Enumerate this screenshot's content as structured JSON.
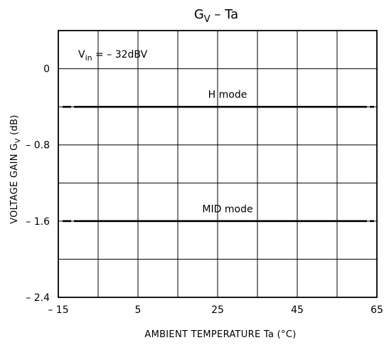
{
  "chart_data": {
    "type": "line",
    "title_main": "G",
    "title_sub": "V",
    "title_rest": "  –  Ta",
    "xlabel": "AMBIENT TEMPERATURE    Ta    (°C)",
    "ylabel": "VOLTAGE GAIN   G",
    "ylabel_sub": "V",
    "ylabel_unit": "   (dB)",
    "xlim": [
      -15,
      65
    ],
    "ylim": [
      -2.4,
      0.4
    ],
    "x_ticks": [
      -15,
      5,
      25,
      45,
      65
    ],
    "x_tick_labels": [
      "– 15",
      "5",
      "25",
      "45",
      "65"
    ],
    "x_grid": [
      -15,
      -5,
      5,
      15,
      25,
      35,
      45,
      55,
      65
    ],
    "y_ticks": [
      0,
      -0.8,
      -1.6,
      -2.4
    ],
    "y_tick_labels": [
      "0",
      "– 0.8",
      "– 1.6",
      "– 2.4"
    ],
    "y_grid": [
      0.4,
      0,
      -0.4,
      -0.8,
      -1.2,
      -1.6,
      -2.0,
      -2.4
    ],
    "grid": true,
    "annotation": {
      "prefix": "V",
      "sub": "in",
      "rest": " = – 32dBV",
      "x": -15,
      "y": 0.2
    },
    "series": [
      {
        "name": "H mode",
        "x": [
          -15,
          65
        ],
        "y": [
          -0.4,
          -0.4
        ]
      },
      {
        "name": "MID mode",
        "x": [
          -15,
          65
        ],
        "y": [
          -1.6,
          -1.6
        ]
      }
    ]
  }
}
